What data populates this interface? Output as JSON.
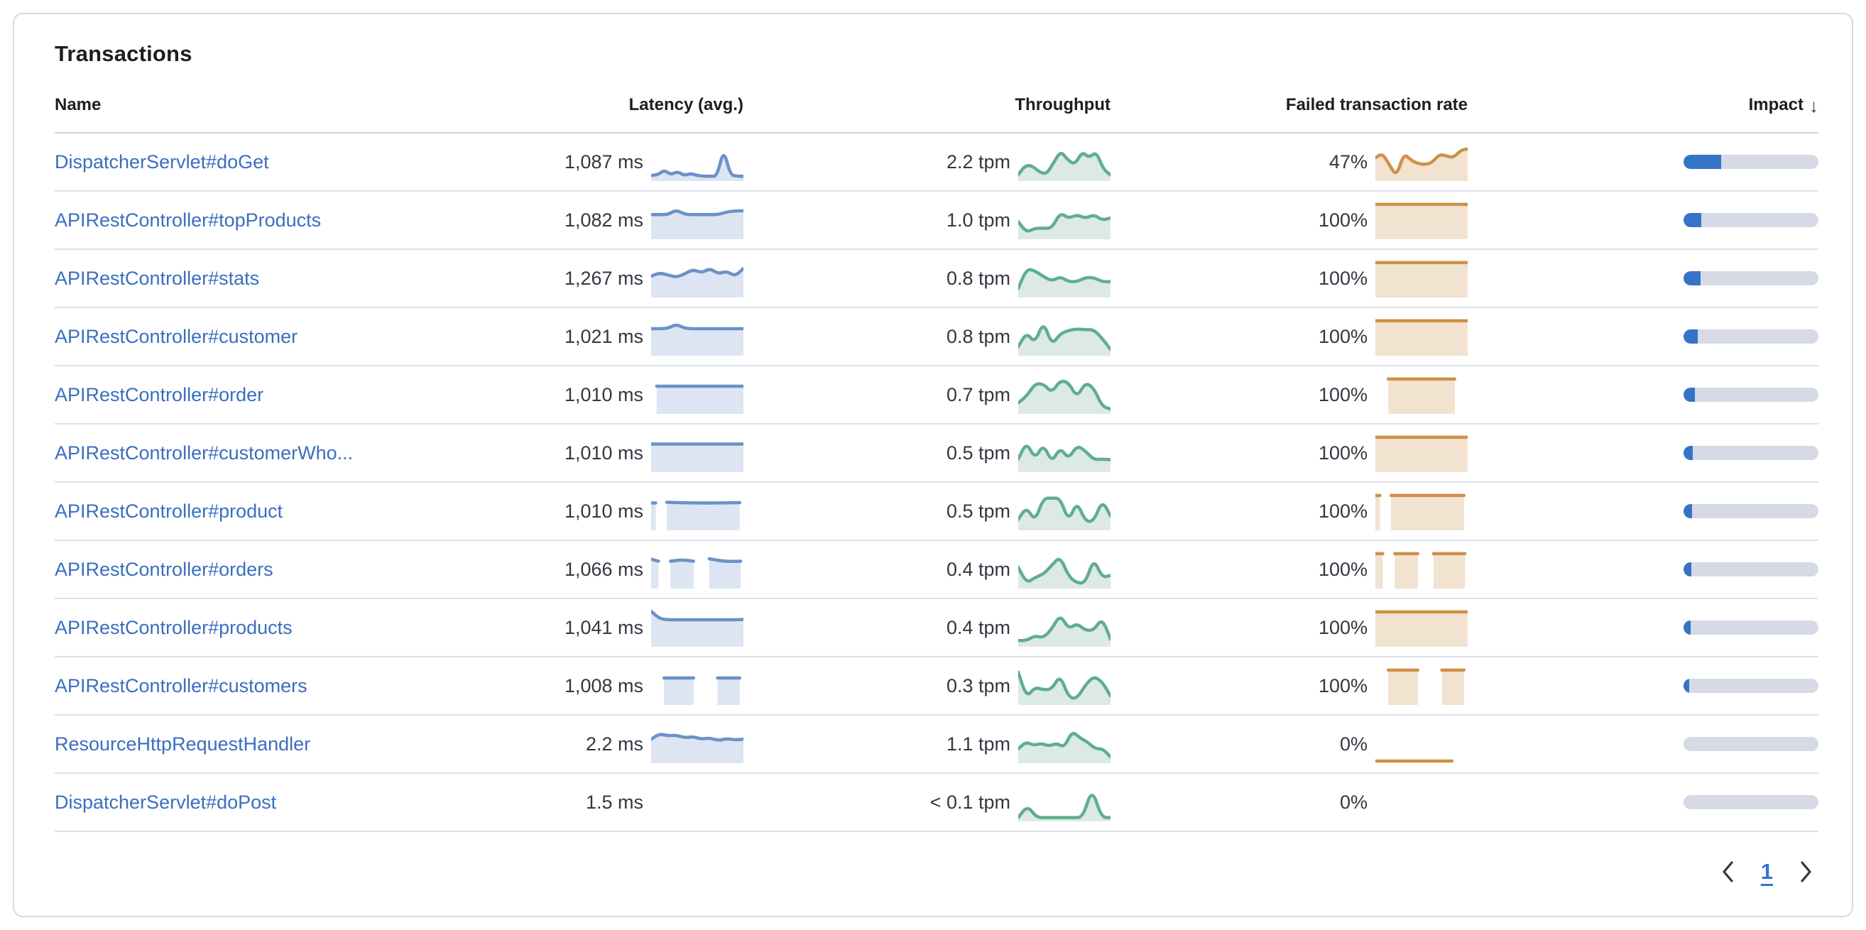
{
  "card": {
    "title": "Transactions"
  },
  "columns": {
    "name": "Name",
    "latency": "Latency (avg.)",
    "throughput": "Throughput",
    "failed_rate": "Failed transaction rate",
    "impact": "Impact",
    "impact_sort": "descending",
    "sort_icon": "arrow-down"
  },
  "pagination": {
    "prev_icon": "chevron-left",
    "page": "1",
    "next_icon": "chevron-right"
  },
  "colors": {
    "link": "#3B6EBF",
    "text": "#343741",
    "heading": "#1D1E24",
    "latency_line": "#6A92C5",
    "latency_fill": "#DCE5F1",
    "throughput_line": "#5FAE8F",
    "throughput_fill": "#DCEAE3",
    "failed_line": "#CE9147",
    "failed_fill": "#F2E2D0",
    "impact_fill": "#3573C6",
    "impact_track": "#D5DAE4",
    "page_current": "#3173D8"
  },
  "rows": [
    {
      "name": "DispatcherServlet#doGet",
      "latency": "1,087 ms",
      "throughput": "2.2 tpm",
      "failed_rate": "47%",
      "impact_pct": 28,
      "latency_spark": {
        "color": "latency",
        "values": [
          10,
          12,
          26,
          12,
          22,
          10,
          16,
          10,
          8,
          8,
          8,
          88,
          12,
          8,
          8
        ]
      },
      "throughput_spark": {
        "color": "throughput",
        "values": [
          12,
          40,
          38,
          20,
          14,
          48,
          82,
          55,
          42,
          80,
          62,
          80,
          28,
          12
        ]
      },
      "failed_spark": {
        "color": "failed",
        "values": [
          62,
          75,
          40,
          8,
          75,
          55,
          45,
          42,
          48,
          72,
          68,
          62,
          84,
          88
        ]
      }
    },
    {
      "name": "APIRestController#topProducts",
      "latency": "1,082 ms",
      "throughput": "1.0 tpm",
      "failed_rate": "100%",
      "impact_pct": 13,
      "latency_spark": {
        "color": "latency",
        "values": [
          66,
          66,
          66,
          80,
          67,
          66,
          66,
          66,
          66,
          74,
          77,
          77
        ]
      },
      "throughput_spark": {
        "color": "throughput",
        "values": [
          45,
          14,
          26,
          26,
          26,
          72,
          55,
          66,
          55,
          66,
          50,
          56
        ]
      },
      "failed_spark": {
        "color": "failed",
        "values": [
          96,
          96,
          96,
          96,
          96,
          96,
          96,
          96,
          96,
          96,
          96,
          96
        ]
      }
    },
    {
      "name": "APIRestController#stats",
      "latency": "1,267 ms",
      "throughput": "0.8 tpm",
      "failed_rate": "100%",
      "impact_pct": 12.5,
      "latency_spark": {
        "color": "latency",
        "values": [
          56,
          66,
          60,
          53,
          63,
          76,
          66,
          79,
          63,
          71,
          56,
          79
        ]
      },
      "throughput_spark": {
        "color": "throughput",
        "values": [
          20,
          78,
          72,
          55,
          42,
          55,
          40,
          40,
          52,
          52,
          40,
          40
        ]
      },
      "failed_spark": {
        "color": "failed",
        "values": [
          96,
          96,
          96,
          96,
          96,
          96,
          96,
          96,
          96,
          96,
          96,
          96
        ]
      }
    },
    {
      "name": "APIRestController#customer",
      "latency": "1,021 ms",
      "throughput": "0.8 tpm",
      "failed_rate": "100%",
      "impact_pct": 10.5,
      "latency_spark": {
        "color": "latency",
        "values": [
          73,
          73,
          74,
          86,
          74,
          73,
          73,
          73,
          73,
          73,
          73,
          73
        ]
      },
      "throughput_spark": {
        "color": "throughput",
        "values": [
          20,
          62,
          30,
          95,
          25,
          58,
          68,
          72,
          70,
          70,
          45,
          12
        ]
      },
      "failed_spark": {
        "color": "failed",
        "values": [
          96,
          96,
          96,
          96,
          96,
          96,
          96,
          96,
          96,
          96,
          96,
          96
        ]
      }
    },
    {
      "name": "APIRestController#order",
      "latency": "1,010 ms",
      "throughput": "0.7 tpm",
      "failed_rate": "100%",
      "impact_pct": 8.5,
      "latency_spark": {
        "color": "latency",
        "segments": [
          {
            "from": 6,
            "to": 100,
            "values": [
              75,
              75,
              75,
              75
            ]
          }
        ]
      },
      "throughput_spark": {
        "color": "throughput",
        "values": [
          26,
          46,
          82,
          82,
          56,
          92,
          86,
          42,
          86,
          70,
          16,
          8
        ]
      },
      "failed_spark": {
        "color": "failed",
        "segments": [
          {
            "from": 14,
            "to": 86,
            "values": [
              96,
              96
            ]
          }
        ]
      }
    },
    {
      "name": "APIRestController#customerWho...",
      "latency": "1,010 ms",
      "throughput": "0.5 tpm",
      "failed_rate": "100%",
      "impact_pct": 7,
      "latency_spark": {
        "color": "latency",
        "values": [
          76,
          76,
          76,
          76,
          76,
          76,
          76,
          76,
          76,
          76,
          76,
          76
        ]
      },
      "throughput_spark": {
        "color": "throughput",
        "values": [
          32,
          82,
          32,
          76,
          22,
          66,
          32,
          72,
          56,
          30,
          32,
          30
        ]
      },
      "failed_spark": {
        "color": "failed",
        "values": [
          96,
          96,
          96,
          96,
          96,
          96,
          96,
          96,
          96,
          96,
          96,
          96
        ]
      }
    },
    {
      "name": "APIRestController#product",
      "latency": "1,010 ms",
      "throughput": "0.5 tpm",
      "failed_rate": "100%",
      "impact_pct": 6.5,
      "latency_spark": {
        "color": "latency",
        "segments": [
          {
            "from": 0,
            "to": 5,
            "values": [
              74,
              74
            ]
          },
          {
            "from": 17,
            "to": 96,
            "values": [
              76,
              74,
              74,
              75
            ]
          }
        ]
      },
      "throughput_spark": {
        "color": "throughput",
        "values": [
          26,
          62,
          20,
          88,
          88,
          88,
          20,
          78,
          20,
          20,
          82,
          36
        ]
      },
      "failed_spark": {
        "color": "failed",
        "segments": [
          {
            "from": 0,
            "to": 5,
            "values": [
              96,
              96
            ]
          },
          {
            "from": 17,
            "to": 96,
            "values": [
              96,
              96
            ]
          }
        ]
      }
    },
    {
      "name": "APIRestController#orders",
      "latency": "1,066 ms",
      "throughput": "0.4 tpm",
      "failed_rate": "100%",
      "impact_pct": 6,
      "latency_spark": {
        "color": "latency",
        "segments": [
          {
            "from": 0,
            "to": 8,
            "values": [
              80,
              74
            ]
          },
          {
            "from": 21,
            "to": 46,
            "values": [
              74,
              78,
              74
            ]
          },
          {
            "from": 63,
            "to": 97,
            "values": [
              81,
              73,
              74
            ]
          }
        ]
      },
      "throughput_spark": {
        "color": "throughput",
        "values": [
          56,
          10,
          26,
          36,
          62,
          88,
          30,
          10,
          10,
          82,
          26,
          32
        ]
      },
      "failed_spark": {
        "color": "failed",
        "segments": [
          {
            "from": 0,
            "to": 8,
            "values": [
              96,
              96
            ]
          },
          {
            "from": 21,
            "to": 46,
            "values": [
              96,
              96
            ]
          },
          {
            "from": 63,
            "to": 97,
            "values": [
              96,
              96
            ]
          }
        ]
      }
    },
    {
      "name": "APIRestController#products",
      "latency": "1,041 ms",
      "throughput": "0.4 tpm",
      "failed_rate": "100%",
      "impact_pct": 5.5,
      "latency_spark": {
        "color": "latency",
        "values": [
          98,
          76,
          73,
          73,
          73,
          73,
          73,
          73,
          73,
          73,
          73,
          74
        ]
      },
      "throughput_spark": {
        "color": "throughput",
        "values": [
          12,
          12,
          26,
          20,
          46,
          88,
          46,
          62,
          42,
          42,
          78,
          16
        ]
      },
      "failed_spark": {
        "color": "failed",
        "values": [
          96,
          96,
          96,
          96,
          96,
          96,
          96,
          96,
          96,
          96,
          96,
          96
        ]
      }
    },
    {
      "name": "APIRestController#customers",
      "latency": "1,008 ms",
      "throughput": "0.3 tpm",
      "failed_rate": "100%",
      "impact_pct": 4,
      "latency_spark": {
        "color": "latency",
        "segments": [
          {
            "from": 14,
            "to": 46,
            "values": [
              73,
              73
            ]
          },
          {
            "from": 72,
            "to": 96,
            "values": [
              73,
              73
            ]
          }
        ]
      },
      "throughput_spark": {
        "color": "throughput",
        "values": [
          90,
          16,
          46,
          38,
          40,
          82,
          16,
          12,
          52,
          78,
          62,
          20
        ]
      },
      "failed_spark": {
        "color": "failed",
        "segments": [
          {
            "from": 14,
            "to": 46,
            "values": [
              96,
              96
            ]
          },
          {
            "from": 72,
            "to": 96,
            "values": [
              96,
              96
            ]
          }
        ]
      }
    },
    {
      "name": "ResourceHttpRequestHandler",
      "latency": "2.2 ms",
      "throughput": "1.1 tpm",
      "failed_rate": "0%",
      "impact_pct": 0,
      "latency_spark": {
        "color": "latency",
        "values": [
          64,
          80,
          74,
          76,
          68,
          72,
          64,
          68,
          60,
          66,
          62,
          64
        ]
      },
      "throughput_spark": {
        "color": "throughput",
        "values": [
          36,
          56,
          46,
          52,
          44,
          52,
          40,
          88,
          68,
          56,
          36,
          36,
          12
        ]
      },
      "failed_spark": {
        "color": "failed",
        "line_only": true,
        "from": 0,
        "to": 83,
        "values": [
          0,
          0,
          0,
          0,
          0,
          0
        ]
      }
    },
    {
      "name": "DispatcherServlet#doPost",
      "latency": "1.5 ms",
      "throughput": "< 0.1 tpm",
      "failed_rate": "0%",
      "impact_pct": 0,
      "latency_spark": null,
      "throughput_spark": {
        "color": "throughput",
        "values": [
          5,
          40,
          5,
          5,
          5,
          5,
          5,
          5,
          92,
          5,
          5
        ]
      },
      "failed_spark": null
    }
  ]
}
